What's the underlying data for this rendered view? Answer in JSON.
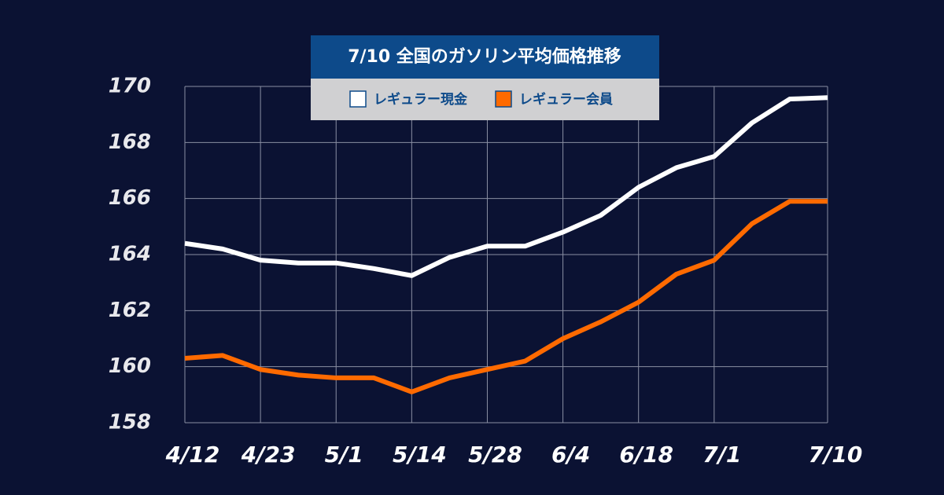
{
  "chart_data": {
    "type": "line",
    "title": "7/10 全国のガソリン平均価格推移",
    "categories": [
      "4/12",
      null,
      "4/23",
      null,
      "5/1",
      null,
      "5/14",
      null,
      "5/28",
      null,
      "6/4",
      null,
      "6/18",
      null,
      "7/1",
      null,
      null,
      "7/10"
    ],
    "series": [
      {
        "name": "レギュラー現金",
        "color": "#ffffff",
        "values": [
          164.4,
          164.2,
          163.8,
          163.7,
          163.7,
          163.5,
          163.25,
          163.9,
          164.3,
          164.3,
          164.8,
          165.4,
          166.4,
          167.1,
          167.5,
          168.7,
          169.55,
          169.6
        ]
      },
      {
        "name": "レギュラー会員",
        "color": "#ff6a00",
        "values": [
          160.3,
          160.4,
          159.9,
          159.7,
          159.6,
          159.6,
          159.1,
          159.6,
          159.9,
          160.2,
          161.0,
          161.6,
          162.3,
          163.3,
          163.8,
          165.1,
          165.9,
          165.9
        ]
      }
    ],
    "ylim": [
      158,
      170
    ],
    "yticks": [
      158,
      160,
      162,
      164,
      166,
      168,
      170
    ],
    "grid": true
  }
}
